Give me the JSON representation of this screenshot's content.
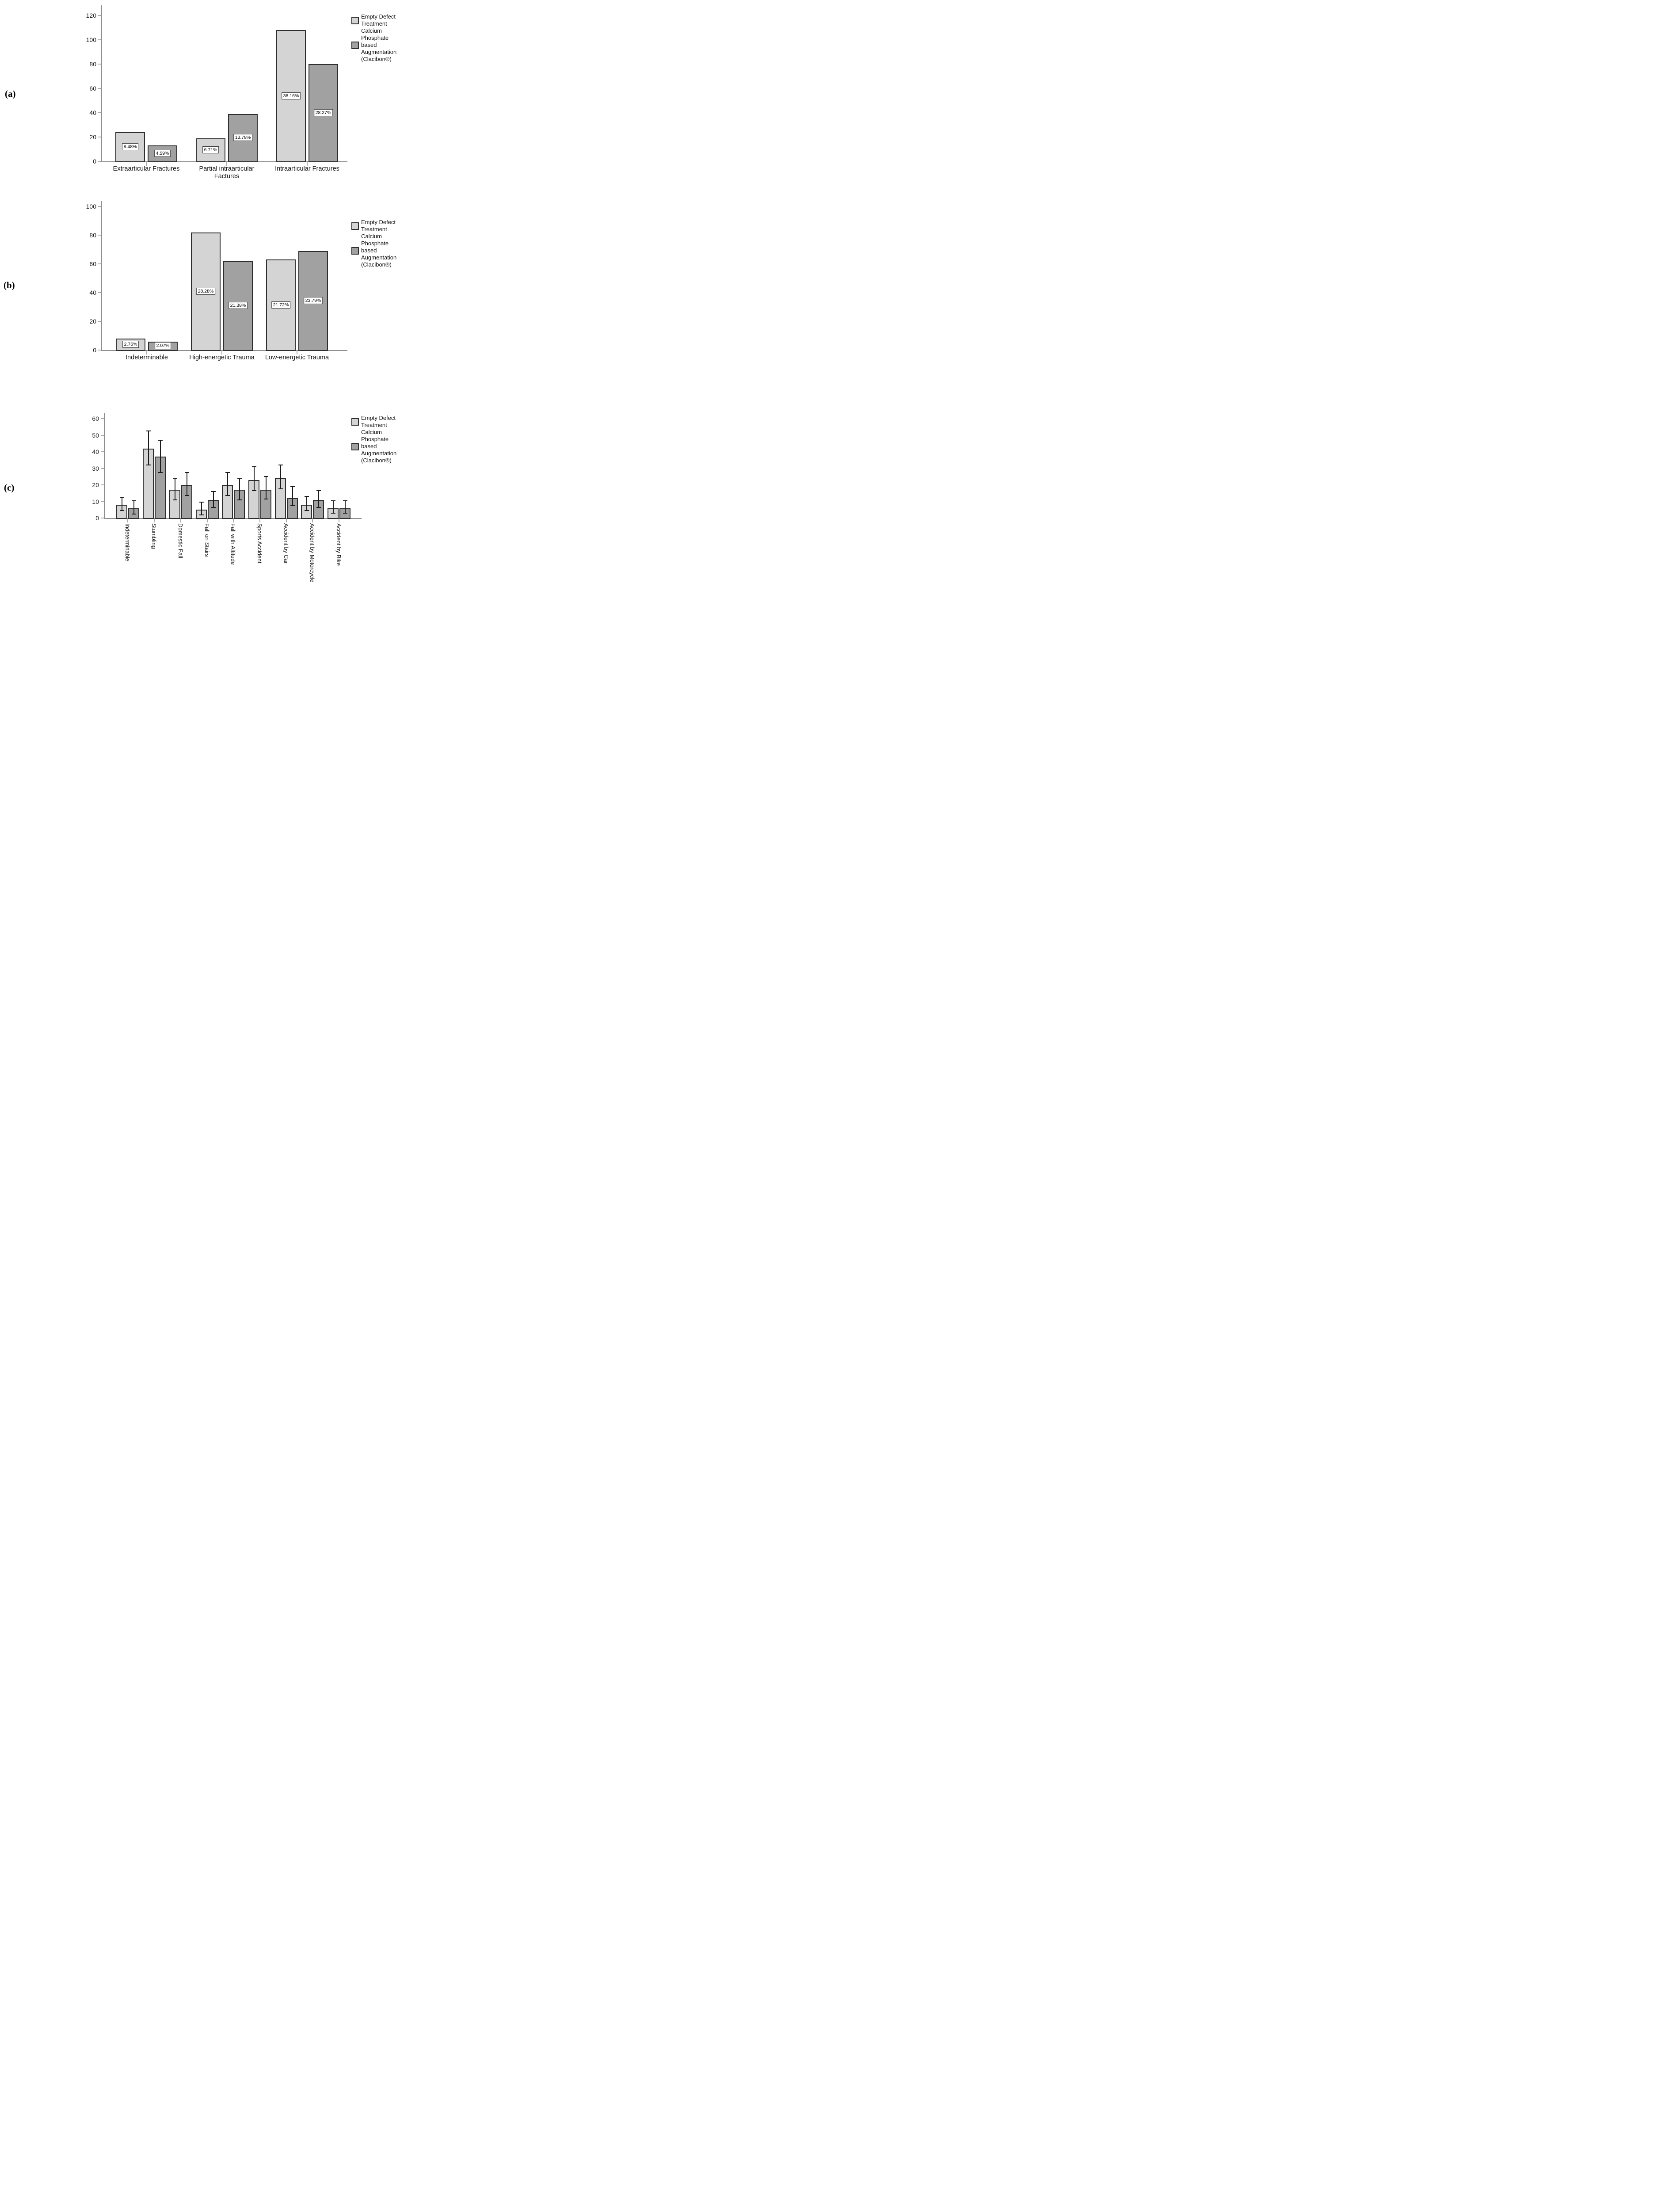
{
  "figure": {
    "background": "#ffffff",
    "panels": [
      {
        "label": "(a)"
      },
      {
        "label": "(b)"
      },
      {
        "label": "(c)"
      }
    ]
  },
  "legend": {
    "items": [
      {
        "swatch_color": "#d4d4d4",
        "lines": [
          "Empty Defect",
          "Treatment"
        ]
      },
      {
        "swatch_color": "#a1a1a1",
        "lines": [
          "Calcium Phosphate",
          "based Augmentation",
          "(Clacibon®)"
        ]
      }
    ]
  },
  "colors": {
    "series_light": "#d4d4d4",
    "series_dark": "#a1a1a1",
    "bar_border": "#2f2f2f",
    "axis": "#8f8f8f",
    "error_bar": "#1c1c1c",
    "label_box_border": "#3a3a3a",
    "text": "#111111"
  },
  "chart_data": [
    {
      "panel": "(a)",
      "type": "bar",
      "title": "",
      "xlabel": "",
      "ylabel": "",
      "grid": false,
      "legend_position": "top-right",
      "ylim": [
        0,
        128
      ],
      "yticks": [
        0,
        20,
        40,
        60,
        80,
        100,
        120
      ],
      "categories": [
        "Extraarticular Fractures",
        "Partial intraarticular\nFactures",
        "Intraarticular Fractures"
      ],
      "series": [
        {
          "name": "Empty Defect Treatment",
          "values": [
            24,
            19,
            108
          ],
          "value_labels": [
            "8.48%",
            "6.71%",
            "38.16%"
          ]
        },
        {
          "name": "Calcium Phosphate based Augmentation (Clacibon®)",
          "values": [
            13,
            39,
            80
          ],
          "value_labels": [
            "4.59%",
            "13.78%",
            "28.27%"
          ]
        }
      ]
    },
    {
      "panel": "(b)",
      "type": "bar",
      "title": "",
      "xlabel": "",
      "ylabel": "",
      "grid": false,
      "legend_position": "top-right",
      "ylim": [
        0,
        104
      ],
      "yticks": [
        0,
        20,
        40,
        60,
        80,
        100
      ],
      "categories": [
        "Indeterminable",
        "High-energetic Trauma",
        "Low-energetic Trauma"
      ],
      "series": [
        {
          "name": "Empty Defect Treatment",
          "values": [
            8,
            82,
            63
          ],
          "value_labels": [
            "2.76%",
            "28.28%",
            "21.72%"
          ]
        },
        {
          "name": "Calcium Phosphate based Augmentation (Clacibon®)",
          "values": [
            6,
            62,
            69
          ],
          "value_labels": [
            "2.07%",
            "21.38%",
            "23.79%"
          ]
        }
      ]
    },
    {
      "panel": "(c)",
      "type": "bar",
      "title": "",
      "xlabel": "",
      "ylabel": "",
      "grid": false,
      "legend_position": "top-right",
      "error_bars": true,
      "ylim": [
        0,
        63
      ],
      "yticks": [
        0,
        10,
        20,
        30,
        40,
        50,
        60
      ],
      "categories": [
        "Indeterminable",
        "Stumbling",
        "Domestic Fall",
        "Fall on Stairs",
        "Fall with Altitude",
        "Sports Accident",
        "Accident by Car",
        "Accident by Motorcycle",
        "Accident by Bike"
      ],
      "series": [
        {
          "name": "Empty Defect Treatment",
          "values": [
            8,
            42,
            17,
            5,
            20,
            23,
            24,
            8,
            6
          ],
          "error_low": [
            4.5,
            32,
            11,
            2,
            13.5,
            16.5,
            17.5,
            4.5,
            3
          ],
          "error_high": [
            12.5,
            52.5,
            24,
            9.5,
            27.5,
            31,
            32,
            13,
            10.5
          ]
        },
        {
          "name": "Calcium Phosphate based Augmentation (Clacibon®)",
          "values": [
            6,
            37,
            20,
            11,
            17,
            17,
            12,
            11,
            6
          ],
          "error_low": [
            2.5,
            27.5,
            13.5,
            6.5,
            11,
            11.5,
            7.5,
            6.5,
            3
          ],
          "error_high": [
            10.5,
            47,
            27.5,
            16,
            24,
            25,
            19,
            16.5,
            10.5
          ]
        }
      ]
    }
  ]
}
